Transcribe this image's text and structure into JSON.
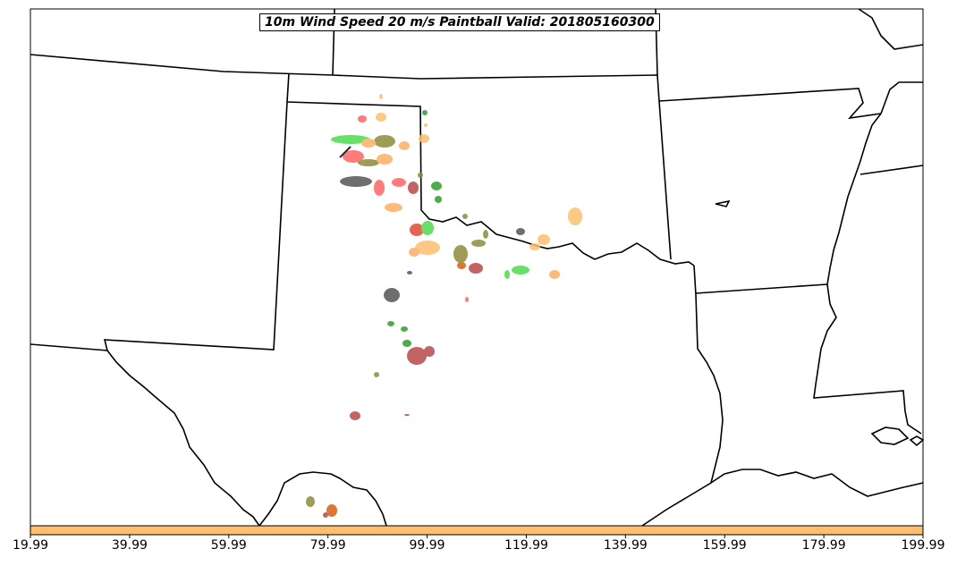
{
  "title": "10m Wind Speed 20 m/s Paintball Valid: 201805160300",
  "colorbar": {
    "fill_color": "#fdbf6f",
    "ticks": [
      "19.99",
      "39.99",
      "59.99",
      "79.99",
      "99.99",
      "119.99",
      "139.99",
      "159.99",
      "179.99",
      "199.99"
    ]
  },
  "blob_colors": [
    "#4ddb4d",
    "#ff6666",
    "#fdae61",
    "#fdbf6f",
    "#8c8c3a",
    "#555555",
    "#b94a4a",
    "#e34a33",
    "#2ca02c",
    "#d95f0e"
  ]
}
